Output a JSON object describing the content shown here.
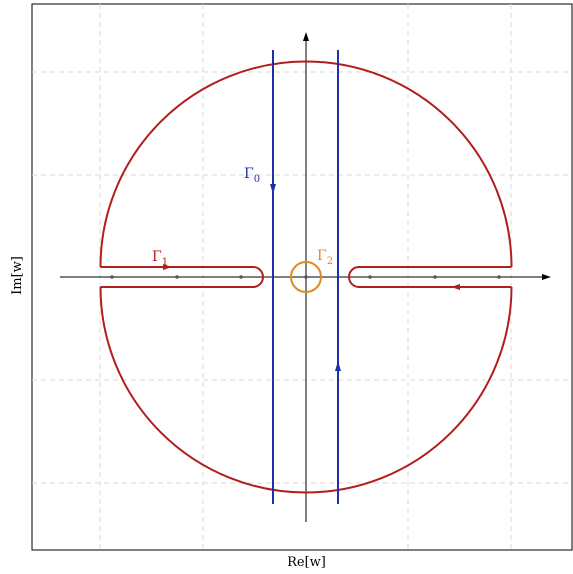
{
  "axes": {
    "xlabel": "Re[w]",
    "ylabel": "Im[w]",
    "grid": true
  },
  "contours": {
    "gamma0": {
      "label": "Γ",
      "sub": "0",
      "color": "#1f2fa8"
    },
    "gamma1": {
      "label": "Γ",
      "sub": "1",
      "color": "#b01e1e"
    },
    "gamma2": {
      "label": "Γ",
      "sub": "2",
      "color": "#e08a1e"
    }
  },
  "colors": {
    "frame": "#000000",
    "grid": "#d9d9d9",
    "points": "#555555"
  }
}
